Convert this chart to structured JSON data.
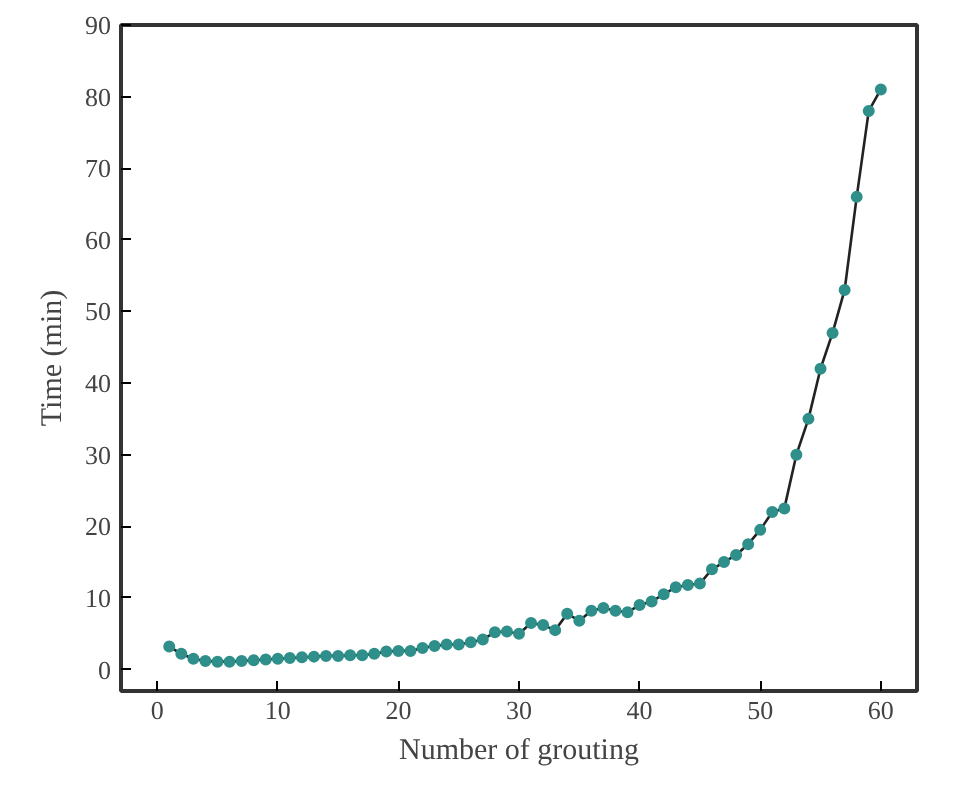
{
  "chart_data": {
    "type": "line",
    "xlabel": "Number of grouting",
    "ylabel": "Time (min)",
    "x": [
      1,
      2,
      3,
      4,
      5,
      6,
      7,
      8,
      9,
      10,
      11,
      12,
      13,
      14,
      15,
      16,
      17,
      18,
      19,
      20,
      21,
      22,
      23,
      24,
      25,
      26,
      27,
      28,
      29,
      30,
      31,
      32,
      33,
      34,
      35,
      36,
      37,
      38,
      39,
      40,
      41,
      42,
      43,
      44,
      45,
      46,
      47,
      48,
      49,
      50,
      51,
      52,
      53,
      54,
      55,
      56,
      57,
      58,
      59,
      60
    ],
    "series": [
      {
        "color": "#2f8f8a",
        "values": [
          3.2,
          2.2,
          1.5,
          1.2,
          1.1,
          1.1,
          1.2,
          1.3,
          1.4,
          1.5,
          1.6,
          1.7,
          1.8,
          1.9,
          1.9,
          2.0,
          2.0,
          2.2,
          2.5,
          2.6,
          2.6,
          3.0,
          3.3,
          3.5,
          3.5,
          3.8,
          4.2,
          5.2,
          5.3,
          5.0,
          6.5,
          6.2,
          5.5,
          7.8,
          6.8,
          8.2,
          8.6,
          8.2,
          8.0,
          9.0,
          9.5,
          10.5,
          11.5,
          11.8,
          12.0,
          14.0,
          15.0,
          16.0,
          17.5,
          19.5,
          22.0,
          22.5,
          30,
          35,
          42,
          47,
          53,
          66,
          78,
          81
        ]
      }
    ],
    "xlim": [
      -3,
      63
    ],
    "ylim": [
      -3,
      90
    ],
    "xticks": [
      0,
      10,
      20,
      30,
      40,
      50,
      60
    ],
    "yticks": [
      0,
      10,
      20,
      30,
      40,
      50,
      60,
      70,
      80,
      90
    ],
    "marker": "circle",
    "line_style": "solid",
    "grid": false
  }
}
